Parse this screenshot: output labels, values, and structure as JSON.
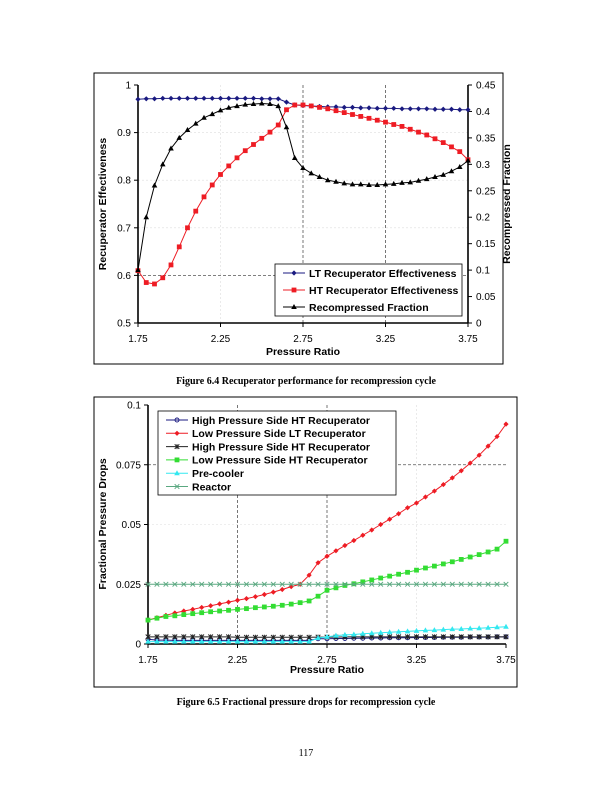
{
  "chart_data": [
    {
      "type": "line",
      "caption": "Figure 6.4 Recuperator performance for recompression cycle",
      "xlabel": "Pressure Ratio",
      "ylabel": "Recuperator Effectiveness",
      "y2label": "Recompressed Fraction",
      "xlim": [
        1.75,
        3.75
      ],
      "ylim": [
        0.5,
        1
      ],
      "y2lim": [
        0,
        0.45
      ],
      "xticks": [
        "1.75",
        "2.25",
        "2.75",
        "3.25",
        "3.75"
      ],
      "yticks": [
        "0.5",
        "0.6",
        "0.7",
        "0.8",
        "0.9",
        "1"
      ],
      "y2ticks": [
        "0",
        "0.05",
        "0.1",
        "0.15",
        "0.2",
        "0.25",
        "0.3",
        "0.35",
        "0.4",
        "0.45"
      ],
      "grid": true,
      "legend": "bottom-right",
      "x": [
        1.75,
        1.8,
        1.85,
        1.9,
        1.95,
        2.0,
        2.05,
        2.1,
        2.15,
        2.2,
        2.25,
        2.3,
        2.35,
        2.4,
        2.45,
        2.5,
        2.55,
        2.6,
        2.65,
        2.7,
        2.75,
        2.8,
        2.85,
        2.9,
        2.95,
        3.0,
        3.05,
        3.1,
        3.15,
        3.2,
        3.25,
        3.3,
        3.35,
        3.4,
        3.45,
        3.5,
        3.55,
        3.6,
        3.65,
        3.7,
        3.75
      ],
      "series": [
        {
          "name": "LT Recuperator Effectiveness",
          "color": "#1a1a80",
          "marker": "diamond",
          "axis": "left",
          "values": [
            0.97,
            0.971,
            0.971,
            0.972,
            0.972,
            0.972,
            0.972,
            0.972,
            0.972,
            0.972,
            0.972,
            0.972,
            0.972,
            0.972,
            0.972,
            0.971,
            0.971,
            0.971,
            0.964,
            0.958,
            0.957,
            0.956,
            0.955,
            0.954,
            0.954,
            0.953,
            0.953,
            0.952,
            0.952,
            0.951,
            0.951,
            0.951,
            0.95,
            0.95,
            0.95,
            0.95,
            0.949,
            0.949,
            0.949,
            0.948,
            0.948
          ]
        },
        {
          "name": "HT Recuperator Effectiveness",
          "color": "#ee1c24",
          "marker": "square",
          "axis": "left",
          "values": [
            0.61,
            0.585,
            0.582,
            0.595,
            0.622,
            0.66,
            0.7,
            0.735,
            0.765,
            0.79,
            0.812,
            0.83,
            0.847,
            0.862,
            0.875,
            0.888,
            0.901,
            0.916,
            0.948,
            0.958,
            0.958,
            0.956,
            0.953,
            0.95,
            0.946,
            0.942,
            0.938,
            0.934,
            0.93,
            0.926,
            0.922,
            0.917,
            0.913,
            0.907,
            0.901,
            0.895,
            0.887,
            0.879,
            0.87,
            0.86,
            0.843
          ]
        },
        {
          "name": "Recompressed Fraction",
          "color": "#000000",
          "marker": "triangle",
          "axis": "right",
          "values": [
            0.1,
            0.2,
            0.26,
            0.3,
            0.33,
            0.35,
            0.365,
            0.377,
            0.388,
            0.395,
            0.402,
            0.407,
            0.41,
            0.413,
            0.414,
            0.415,
            0.414,
            0.41,
            0.37,
            0.312,
            0.293,
            0.283,
            0.276,
            0.27,
            0.267,
            0.264,
            0.262,
            0.262,
            0.261,
            0.261,
            0.262,
            0.263,
            0.265,
            0.266,
            0.269,
            0.272,
            0.276,
            0.28,
            0.287,
            0.295,
            0.307
          ]
        }
      ]
    },
    {
      "type": "line",
      "caption": "Figure 6.5 Fractional pressure drops for recompression cycle",
      "xlabel": "Pressure Ratio",
      "ylabel": "Fractional Pressure Drops",
      "xlim": [
        1.75,
        3.75
      ],
      "ylim": [
        0,
        0.1
      ],
      "xticks": [
        "1.75",
        "2.25",
        "2.75",
        "3.25",
        "3.75"
      ],
      "yticks": [
        "0",
        "0.025",
        "0.05",
        "0.075",
        "0.1"
      ],
      "grid": true,
      "legend": "top-left",
      "x": [
        1.75,
        1.8,
        1.85,
        1.9,
        1.95,
        2.0,
        2.05,
        2.1,
        2.15,
        2.2,
        2.25,
        2.3,
        2.35,
        2.4,
        2.45,
        2.5,
        2.55,
        2.6,
        2.65,
        2.7,
        2.75,
        2.8,
        2.85,
        2.9,
        2.95,
        3.0,
        3.05,
        3.1,
        3.15,
        3.2,
        3.25,
        3.3,
        3.35,
        3.4,
        3.45,
        3.5,
        3.55,
        3.6,
        3.65,
        3.7,
        3.75
      ],
      "series": [
        {
          "name": "High Pressure Side HT Recuperator",
          "color": "#1a1a80",
          "marker": "circle",
          "values": [
            0.002,
            0.0016,
            0.0016,
            0.0015,
            0.0015,
            0.0015,
            0.0015,
            0.0015,
            0.0015,
            0.0015,
            0.0015,
            0.0015,
            0.0015,
            0.0015,
            0.0015,
            0.0015,
            0.0015,
            0.0015,
            0.0015,
            0.0022,
            0.0022,
            0.0023,
            0.0023,
            0.0024,
            0.0024,
            0.0025,
            0.0025,
            0.0026,
            0.0026,
            0.0026,
            0.0027,
            0.0027,
            0.0027,
            0.0028,
            0.0028,
            0.0028,
            0.0029,
            0.0029,
            0.0029,
            0.003,
            0.003
          ]
        },
        {
          "name": "Low Pressure Side LT Recuperator",
          "color": "#ee1c24",
          "marker": "diamond",
          "values": [
            0.01,
            0.011,
            0.012,
            0.013,
            0.0138,
            0.0145,
            0.0153,
            0.016,
            0.0168,
            0.0175,
            0.0183,
            0.019,
            0.0198,
            0.0207,
            0.0217,
            0.0228,
            0.024,
            0.025,
            0.0288,
            0.034,
            0.0367,
            0.039,
            0.0412,
            0.0433,
            0.0455,
            0.0477,
            0.05,
            0.0522,
            0.0545,
            0.057,
            0.059,
            0.0615,
            0.064,
            0.0667,
            0.0695,
            0.0725,
            0.0757,
            0.079,
            0.0828,
            0.0868,
            0.092
          ]
        },
        {
          "name": "High Pressure Side HT Recuperator",
          "color": "#222222",
          "marker": "star",
          "values": [
            0.003,
            0.003,
            0.003,
            0.003,
            0.003,
            0.003,
            0.003,
            0.003,
            0.003,
            0.003,
            0.0028,
            0.0028,
            0.0028,
            0.0028,
            0.0028,
            0.0028,
            0.0028,
            0.0028,
            0.0028,
            0.0029,
            0.0029,
            0.0029,
            0.003,
            0.003,
            0.003,
            0.003,
            0.003,
            0.003,
            0.003,
            0.003,
            0.003,
            0.003,
            0.003,
            0.003,
            0.003,
            0.003,
            0.003,
            0.003,
            0.003,
            0.003,
            0.003
          ]
        },
        {
          "name": "Low Pressure Side HT Recuperator",
          "color": "#33dd33",
          "marker": "square",
          "values": [
            0.01,
            0.0108,
            0.0115,
            0.0118,
            0.0123,
            0.0127,
            0.0131,
            0.0135,
            0.0138,
            0.0141,
            0.0145,
            0.0148,
            0.0152,
            0.0155,
            0.0158,
            0.0162,
            0.0167,
            0.0173,
            0.018,
            0.02,
            0.0225,
            0.0235,
            0.0245,
            0.0252,
            0.026,
            0.0268,
            0.0276,
            0.0284,
            0.0292,
            0.03,
            0.0309,
            0.0318,
            0.0326,
            0.0335,
            0.0344,
            0.0354,
            0.0364,
            0.0374,
            0.0385,
            0.0397,
            0.043
          ]
        },
        {
          "name": "Pre-cooler",
          "color": "#33e8f0",
          "marker": "triangle",
          "values": [
            0.001,
            0.001,
            0.001,
            0.001,
            0.001,
            0.001,
            0.001,
            0.001,
            0.001,
            0.001,
            0.001,
            0.001,
            0.001,
            0.001,
            0.001,
            0.001,
            0.001,
            0.001,
            0.001,
            0.0025,
            0.003,
            0.0035,
            0.0038,
            0.004,
            0.0043,
            0.0045,
            0.0047,
            0.0049,
            0.0051,
            0.0053,
            0.0055,
            0.0057,
            0.0058,
            0.006,
            0.0062,
            0.0063,
            0.0065,
            0.0066,
            0.0068,
            0.007,
            0.0072
          ]
        },
        {
          "name": "Reactor",
          "color": "#5aa880",
          "marker": "x",
          "values": [
            0.025,
            0.025,
            0.025,
            0.025,
            0.025,
            0.025,
            0.025,
            0.025,
            0.025,
            0.025,
            0.025,
            0.025,
            0.025,
            0.025,
            0.025,
            0.025,
            0.025,
            0.025,
            0.025,
            0.025,
            0.025,
            0.025,
            0.025,
            0.025,
            0.025,
            0.025,
            0.025,
            0.025,
            0.025,
            0.025,
            0.025,
            0.025,
            0.025,
            0.025,
            0.025,
            0.025,
            0.025,
            0.025,
            0.025,
            0.025,
            0.025
          ]
        }
      ]
    }
  ],
  "page_number": "117"
}
